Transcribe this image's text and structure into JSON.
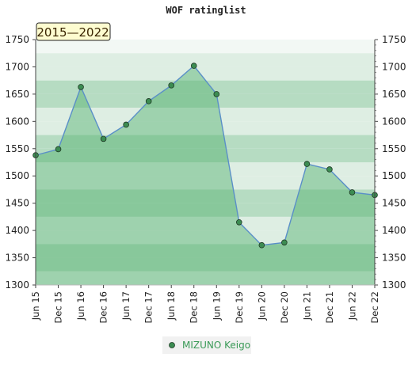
{
  "chart_data": {
    "type": "area",
    "title": "WOF ratinglist",
    "period_badge": "2015—2022",
    "ylim": [
      1300,
      1750
    ],
    "y_ticks": [
      1300,
      1350,
      1400,
      1450,
      1500,
      1550,
      1600,
      1650,
      1700,
      1750
    ],
    "grid": false,
    "legend_placement": "bottom-center",
    "categories": [
      "Jun 15",
      "Dec 15",
      "Jun 16",
      "Dec 16",
      "Jun 17",
      "Dec 17",
      "Jun 18",
      "Dec 18",
      "Jun 19",
      "Dec 19",
      "Jun 20",
      "Dec 20",
      "Jun 21",
      "Dec 21",
      "Jun 22",
      "Dec 22"
    ],
    "series": [
      {
        "name": "MIZUNO Keigo",
        "values": [
          1538,
          1549,
          1663,
          1568,
          1594,
          1637,
          1666,
          1702,
          1650,
          1415,
          1373,
          1378,
          1522,
          1512,
          1470,
          1465
        ]
      }
    ],
    "colors": {
      "band_dark": "#b6dcc2",
      "band_light": "#deeee3",
      "band_white": "#f2f8f4",
      "area_fill": "#4fb06c",
      "line": "#5a8fc8",
      "marker": "#3c8c52",
      "badge_fill": "#fdfcd0"
    }
  }
}
